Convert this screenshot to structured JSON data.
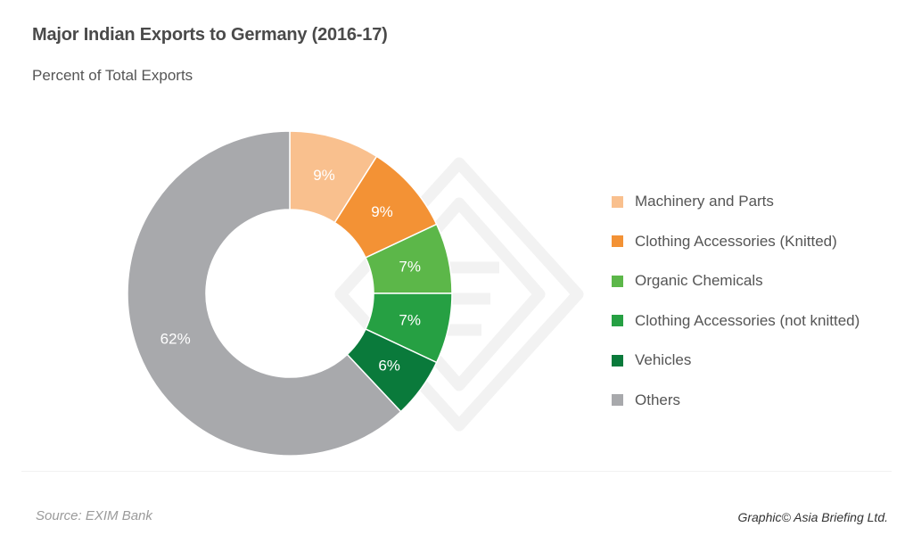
{
  "header": {
    "title": "Major Indian Exports to Germany (2016-17)",
    "subtitle": "Percent of Total Exports"
  },
  "chart_data": {
    "type": "pie",
    "variant": "donut",
    "title": "Major Indian Exports to Germany (2016-17)",
    "subtitle": "Percent of Total Exports",
    "categories": [
      "Machinery and Parts",
      "Clothing Accessories (Knitted)",
      "Organic Chemicals",
      "Clothing Accessories (not knitted)",
      "Vehicles",
      "Others"
    ],
    "values": [
      9,
      9,
      7,
      7,
      6,
      62
    ],
    "labels": [
      "9%",
      "9%",
      "7%",
      "7%",
      "6%",
      "62%"
    ],
    "colors": [
      "#f9c08e",
      "#f39235",
      "#5cb749",
      "#26a043",
      "#0a7a3b",
      "#a8a9ac"
    ],
    "unit": "%",
    "legend_position": "right"
  },
  "footer": {
    "source": "Source: EXIM Bank",
    "credit": "Graphic© Asia Briefing Ltd."
  }
}
